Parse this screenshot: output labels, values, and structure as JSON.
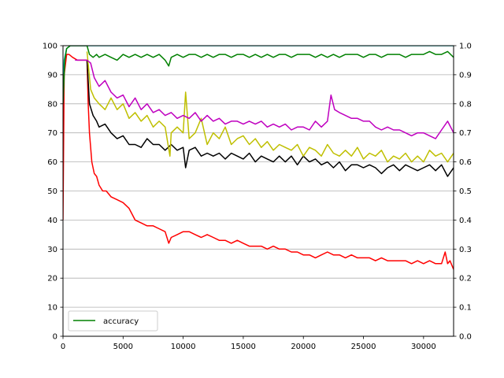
{
  "chart_data": {
    "type": "line",
    "title": "",
    "xlabel": "",
    "ylabel": "",
    "xlim": [
      0,
      32500
    ],
    "ylim_left": [
      0,
      100
    ],
    "ylim_right": [
      0.0,
      1.0
    ],
    "x_ticks": [
      0,
      5000,
      10000,
      15000,
      20000,
      25000,
      30000
    ],
    "y_ticks_left": [
      0,
      10,
      20,
      30,
      40,
      50,
      60,
      70,
      80,
      90,
      100
    ],
    "y_ticks_right": [
      "0.0",
      "0.1",
      "0.2",
      "0.3",
      "0.4",
      "0.5",
      "0.6",
      "0.7",
      "0.8",
      "0.9",
      "1.0"
    ],
    "grid": "horizontal",
    "legend_position": "lower-left",
    "legend": [
      {
        "label": "accuracy",
        "color": "#008000"
      }
    ],
    "series": [
      {
        "name": "accuracy",
        "axis": "left",
        "color": "#008000",
        "x": [
          0,
          150,
          300,
          600,
          1000,
          1500,
          2000,
          2200,
          2500,
          2800,
          3000,
          3500,
          4000,
          4500,
          5000,
          5500,
          6000,
          6500,
          7000,
          7500,
          8000,
          8500,
          8800,
          9000,
          9500,
          10000,
          10500,
          11000,
          11500,
          12000,
          12500,
          13000,
          13500,
          14000,
          14500,
          15000,
          15500,
          16000,
          16500,
          17000,
          17500,
          18000,
          18500,
          19000,
          19500,
          20000,
          20500,
          21000,
          21500,
          22000,
          22500,
          23000,
          23500,
          24000,
          24500,
          25000,
          25500,
          26000,
          26500,
          27000,
          27500,
          28000,
          28500,
          29000,
          29500,
          30000,
          30500,
          31000,
          31500,
          32000,
          32500
        ],
        "y": [
          80,
          95,
          99,
          100,
          100,
          100,
          100,
          97,
          96,
          97,
          96,
          97,
          96,
          95,
          97,
          96,
          97,
          96,
          97,
          96,
          97,
          95,
          93,
          96,
          97,
          96,
          97,
          97,
          96,
          97,
          96,
          97,
          97,
          96,
          97,
          97,
          96,
          97,
          96,
          97,
          96,
          97,
          97,
          96,
          97,
          97,
          97,
          96,
          97,
          96,
          97,
          96,
          97,
          97,
          97,
          96,
          97,
          97,
          96,
          97,
          97,
          97,
          96,
          97,
          97,
          97,
          98,
          97,
          97,
          98,
          96
        ]
      },
      {
        "name": "",
        "axis": "left",
        "color": "#00bfbf",
        "x": [
          0,
          100,
          300,
          600,
          1000,
          2000,
          5000,
          10000,
          15000,
          20000,
          25000,
          30000,
          32500
        ],
        "y": [
          85,
          95,
          99,
          100,
          100,
          100,
          100,
          100,
          100,
          100,
          100,
          100,
          100
        ]
      },
      {
        "name": "",
        "axis": "left",
        "color": "#ff0000",
        "x": [
          0,
          100,
          300,
          500,
          800,
          1200,
          1600,
          2000,
          2100,
          2200,
          2400,
          2600,
          2800,
          3000,
          3300,
          3600,
          4000,
          4500,
          5000,
          5500,
          6000,
          6500,
          7000,
          7500,
          8000,
          8500,
          8800,
          9000,
          9500,
          10000,
          10500,
          11000,
          11500,
          12000,
          12500,
          13000,
          13500,
          14000,
          14500,
          15000,
          15500,
          16000,
          16500,
          17000,
          17500,
          18000,
          18500,
          19000,
          19500,
          20000,
          20500,
          21000,
          21500,
          22000,
          22500,
          23000,
          23500,
          24000,
          24500,
          25000,
          25500,
          26000,
          26500,
          27000,
          27500,
          28000,
          28500,
          29000,
          29500,
          30000,
          30500,
          31000,
          31500,
          31800,
          32000,
          32200,
          32500
        ],
        "y": [
          40,
          90,
          97,
          97,
          96,
          95,
          95,
          95,
          80,
          70,
          60,
          56,
          55,
          52,
          50,
          50,
          48,
          47,
          46,
          44,
          40,
          39,
          38,
          38,
          37,
          36,
          32,
          34,
          35,
          36,
          36,
          35,
          34,
          35,
          34,
          33,
          33,
          32,
          33,
          32,
          31,
          31,
          31,
          30,
          31,
          30,
          30,
          29,
          29,
          28,
          28,
          27,
          28,
          29,
          28,
          28,
          27,
          28,
          27,
          27,
          27,
          26,
          27,
          26,
          26,
          26,
          26,
          25,
          26,
          25,
          26,
          25,
          25,
          29,
          25,
          26,
          23
        ]
      },
      {
        "name": "",
        "axis": "left",
        "color": "#000000",
        "x": [
          2000,
          2200,
          2500,
          2800,
          3000,
          3500,
          4000,
          4500,
          5000,
          5500,
          6000,
          6500,
          7000,
          7500,
          8000,
          8500,
          9000,
          9500,
          10000,
          10200,
          10500,
          11000,
          11500,
          12000,
          12500,
          13000,
          13500,
          14000,
          14500,
          15000,
          15500,
          16000,
          16500,
          17000,
          17500,
          18000,
          18500,
          19000,
          19500,
          20000,
          20500,
          21000,
          21500,
          22000,
          22500,
          23000,
          23500,
          24000,
          24500,
          25000,
          25500,
          26000,
          26500,
          27000,
          27500,
          28000,
          28500,
          29000,
          29500,
          30000,
          30500,
          31000,
          31500,
          32000,
          32500
        ],
        "y": [
          95,
          80,
          76,
          74,
          72,
          73,
          70,
          68,
          69,
          66,
          66,
          65,
          68,
          66,
          66,
          64,
          66,
          64,
          65,
          58,
          64,
          65,
          62,
          63,
          62,
          63,
          61,
          63,
          62,
          61,
          63,
          60,
          62,
          61,
          60,
          62,
          60,
          62,
          59,
          62,
          60,
          61,
          59,
          60,
          58,
          60,
          57,
          59,
          59,
          58,
          59,
          58,
          56,
          58,
          59,
          57,
          59,
          58,
          57,
          58,
          59,
          57,
          59,
          55,
          58
        ]
      },
      {
        "name": "",
        "axis": "left",
        "color": "#bfbf00",
        "x": [
          2000,
          2300,
          2600,
          3000,
          3500,
          4000,
          4500,
          5000,
          5500,
          6000,
          6500,
          7000,
          7500,
          8000,
          8500,
          8900,
          9000,
          9500,
          10000,
          10200,
          10500,
          11000,
          11500,
          12000,
          12500,
          13000,
          13500,
          14000,
          14500,
          15000,
          15500,
          16000,
          16500,
          17000,
          17500,
          18000,
          18500,
          19000,
          19500,
          20000,
          20500,
          21000,
          21500,
          22000,
          22500,
          23000,
          23500,
          24000,
          24500,
          25000,
          25500,
          26000,
          26500,
          27000,
          27500,
          28000,
          28500,
          29000,
          29500,
          30000,
          30500,
          31000,
          31500,
          32000,
          32500
        ],
        "y": [
          98,
          85,
          82,
          80,
          78,
          82,
          78,
          80,
          75,
          77,
          74,
          76,
          72,
          74,
          72,
          62,
          70,
          72,
          70,
          84,
          68,
          70,
          75,
          66,
          70,
          68,
          72,
          66,
          68,
          69,
          66,
          68,
          65,
          67,
          64,
          66,
          65,
          64,
          66,
          62,
          65,
          64,
          62,
          66,
          63,
          62,
          64,
          62,
          65,
          61,
          63,
          62,
          64,
          60,
          62,
          61,
          63,
          60,
          62,
          60,
          64,
          62,
          63,
          60,
          63
        ]
      },
      {
        "name": "",
        "axis": "left",
        "color": "#bf00bf",
        "x": [
          1000,
          1500,
          2000,
          2300,
          2600,
          3000,
          3500,
          4000,
          4500,
          5000,
          5500,
          6000,
          6500,
          7000,
          7500,
          8000,
          8500,
          9000,
          9500,
          10000,
          10500,
          11000,
          11500,
          12000,
          12500,
          13000,
          13500,
          14000,
          14500,
          15000,
          15500,
          16000,
          16500,
          17000,
          17500,
          18000,
          18500,
          19000,
          19500,
          20000,
          20500,
          21000,
          21500,
          22000,
          22300,
          22600,
          23000,
          23500,
          24000,
          24500,
          25000,
          25500,
          26000,
          26500,
          27000,
          27500,
          28000,
          28500,
          29000,
          29500,
          30000,
          30500,
          31000,
          31500,
          32000,
          32500
        ],
        "y": [
          95,
          95,
          95,
          94,
          89,
          86,
          88,
          84,
          82,
          83,
          79,
          82,
          78,
          80,
          77,
          78,
          76,
          77,
          75,
          76,
          75,
          77,
          74,
          76,
          74,
          75,
          73,
          74,
          74,
          73,
          74,
          73,
          74,
          72,
          73,
          72,
          73,
          71,
          72,
          72,
          71,
          74,
          72,
          74,
          83,
          78,
          77,
          76,
          75,
          75,
          74,
          74,
          72,
          71,
          72,
          71,
          71,
          70,
          69,
          70,
          70,
          69,
          68,
          71,
          74,
          70
        ]
      }
    ]
  }
}
